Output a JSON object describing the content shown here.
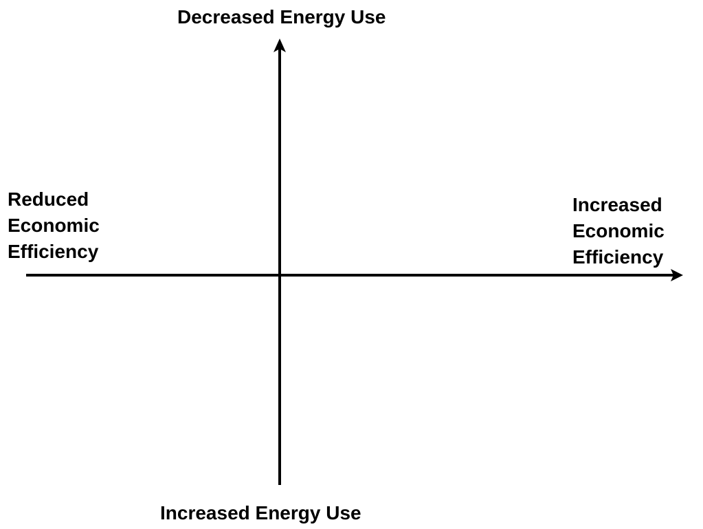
{
  "diagram": {
    "type": "quadrant-axes",
    "axis_color": "#000000",
    "vertical_axis": {
      "top_label": "Decreased Energy Use",
      "bottom_label": "Increased Energy Use"
    },
    "horizontal_axis": {
      "left_label_lines": [
        "Reduced",
        "Economic",
        "Efficiency"
      ],
      "right_label_lines": [
        "Increased",
        "Economic",
        "Efficiency"
      ]
    }
  }
}
